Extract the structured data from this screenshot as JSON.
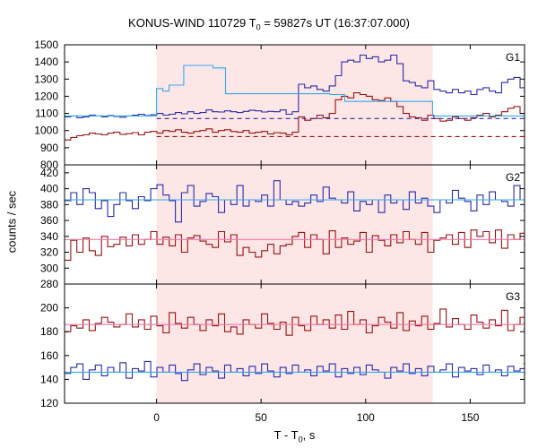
{
  "chart_data": {
    "type": "line",
    "title_main": "KONUS-WIND 110729 T",
    "title_sub": "0",
    "title_rest": " = 59827s UT (16:37:07.000)",
    "xlabel_main": "T - T",
    "xlabel_sub": "0",
    "xlabel_rest": ", s",
    "ylabel": "counts / sec",
    "xlim": [
      -44,
      176
    ],
    "xticks": [
      0,
      50,
      100,
      150
    ],
    "highlight_interval": [
      0,
      132
    ],
    "colors": {
      "blue": "#2b2bab",
      "red": "#9b1111",
      "cyan": "#33aaee",
      "pink": "#ee77aa",
      "highlight": "#fde6e6"
    },
    "panels": [
      {
        "label": "G1",
        "ylim": [
          800,
          1500
        ],
        "yticks": [
          800,
          900,
          1000,
          1100,
          1200,
          1300,
          1400,
          1500
        ],
        "series": [
          {
            "color": "blue",
            "style": "steps",
            "x0": -44,
            "step": 2.944,
            "values": [
              1080,
              1085,
              1075,
              1080,
              1090,
              1085,
              1080,
              1088,
              1082,
              1078,
              1085,
              1090,
              1095,
              1088,
              1092,
              1100,
              1090,
              1095,
              1105,
              1098,
              1110,
              1100,
              1105,
              1120,
              1110,
              1108,
              1115,
              1110,
              1105,
              1112,
              1118,
              1115,
              1108,
              1112,
              1110,
              1120,
              1095,
              1110,
              1270,
              1250,
              1260,
              1240,
              1230,
              1260,
              1320,
              1400,
              1410,
              1400,
              1440,
              1420,
              1430,
              1400,
              1410,
              1440,
              1390,
              1290,
              1280,
              1260,
              1250,
              1290,
              1240,
              1230,
              1220,
              1240,
              1220,
              1230,
              1210,
              1240,
              1250,
              1230,
              1220,
              1280,
              1300,
              1310,
              1250,
              1230,
              1200,
              1210,
              1240,
              1215,
              1260,
              1220,
              1210,
              1190,
              1215,
              1230,
              1180,
              1230,
              1200,
              1175,
              1190,
              1170,
              1160,
              1180,
              1150,
              1160,
              1140,
              1130,
              1120,
              1110,
              1110,
              1100,
              1100,
              1090,
              1090,
              1100,
              1080,
              1070,
              1085,
              1095,
              1100,
              1090,
              1080,
              1100,
              1110,
              1090,
              1095,
              1100,
              1085,
              1100,
              1110,
              1105,
              1105,
              1100,
              1090,
              1120,
              1095,
              1090,
              1100,
              1110
            ]
          },
          {
            "color": "red",
            "style": "steps",
            "x0": -44,
            "step": 2.944,
            "values": [
              945,
              960,
              970,
              975,
              985,
              980,
              975,
              985,
              990,
              978,
              982,
              988,
              975,
              990,
              995,
              985,
              1000,
              995,
              1005,
              990,
              985,
              995,
              1000,
              1010,
              990,
              1000,
              1005,
              995,
              990,
              1000,
              985,
              990,
              995,
              980,
              988,
              985,
              975,
              990,
              1080,
              1060,
              1070,
              1090,
              1075,
              1100,
              1180,
              1200,
              1190,
              1220,
              1210,
              1200,
              1180,
              1175,
              1190,
              1170,
              1140,
              1100,
              1080,
              1075,
              1060,
              1090,
              1070,
              1055,
              1060,
              1080,
              1070,
              1060,
              1075,
              1090,
              1100,
              1080,
              1090,
              1110,
              1130,
              1140,
              1100,
              1090,
              1080,
              1080,
              1070,
              1060,
              1065,
              1070,
              1060,
              1050,
              1045,
              1040,
              1050,
              1030,
              1020,
              1015,
              1010,
              1000,
              1000,
              990,
              985,
              980,
              990,
              975,
              960,
              965,
              970,
              980,
              975,
              970,
              990,
              985,
              980,
              960,
              985,
              995,
              990,
              975,
              985,
              970,
              980,
              990,
              985,
              975,
              980,
              975,
              970,
              990,
              975,
              985,
              970,
              985,
              980,
              975,
              985,
              970,
              975,
              960
            ]
          },
          {
            "color": "cyan",
            "style": "steps",
            "x": [
              -44,
              0,
              3,
              6,
              13,
              27,
              33,
              83,
              90,
              132,
              176
            ],
            "values": [
              1085,
              1245,
              1230,
              1265,
              1380,
              1365,
              1215,
              1210,
              1170,
              1085,
              1085
            ]
          },
          {
            "color": "blue",
            "style": "dashed",
            "x": [
              0,
              176
            ],
            "values": [
              1070,
              1070
            ]
          },
          {
            "color": "red",
            "style": "dashed",
            "x": [
              0,
              176
            ],
            "values": [
              965,
              965
            ]
          }
        ]
      },
      {
        "label": "G2",
        "ylim": [
          280,
          430
        ],
        "yticks": [
          280,
          300,
          320,
          340,
          360,
          380,
          400,
          420
        ],
        "series": [
          {
            "color": "blue",
            "style": "steps",
            "x0": -44,
            "step": 2.944,
            "values": [
              385,
              395,
              380,
              400,
              395,
              375,
              385,
              365,
              380,
              395,
              385,
              375,
              390,
              385,
              400,
              405,
              392,
              385,
              358,
              395,
              404,
              378,
              384,
              394,
              390,
              370,
              386,
              380,
              404,
              378,
              386,
              384,
              392,
              378,
              410,
              386,
              380,
              384,
              378,
              382,
              392,
              384,
              402,
              388,
              386,
              382,
              396,
              372,
              384,
              380,
              386,
              370,
              392,
              382,
              386,
              374,
              396,
              382,
              388,
              378,
              370,
              386,
              382,
              398,
              388,
              384,
              372,
              392,
              380,
              396,
              386,
              384,
              378,
              404,
              386,
              386,
              372,
              390,
              380,
              398,
              378,
              384,
              380,
              368,
              390,
              382,
              398,
              388,
              392,
              372,
              380,
              384,
              402,
              378,
              372,
              384,
              366,
              394,
              382,
              396,
              378,
              380,
              370,
              392,
              386,
              390,
              384,
              380,
              386,
              410,
              390,
              384,
              398,
              382,
              400,
              382,
              394,
              376,
              402,
              386,
              392,
              388,
              412,
              398,
              384,
              416,
              390,
              376,
              392,
              384
            ]
          },
          {
            "color": "red",
            "style": "steps",
            "x0": -44,
            "step": 2.944,
            "values": [
              310,
              335,
              320,
              338,
              322,
              316,
              340,
              327,
              330,
              339,
              328,
              342,
              330,
              336,
              346,
              330,
              339,
              328,
              342,
              320,
              338,
              341,
              334,
              330,
              326,
              346,
              333,
              342,
              316,
              326,
              320,
              314,
              322,
              330,
              318,
              328,
              330,
              340,
              345,
              326,
              342,
              336,
              318,
              347,
              326,
              338,
              330,
              334,
              345,
              320,
              341,
              335,
              328,
              342,
              332,
              346,
              336,
              330,
              345,
              320,
              335,
              338,
              342,
              330,
              345,
              326,
              348,
              340,
              346,
              332,
              348,
              325,
              342,
              336,
              344,
              330,
              346,
              338,
              334,
              342,
              331,
              334,
              339,
              330,
              342,
              336,
              332,
              346,
              330,
              344,
              338,
              326,
              335,
              352,
              334,
              350,
              330,
              342,
              336,
              340,
              322,
              334,
              326,
              338,
              328,
              340,
              334,
              342,
              332,
              344,
              334,
              346,
              336,
              326,
              344,
              336,
              325,
              348,
              342,
              330,
              336,
              342,
              338,
              344,
              332,
              334,
              340,
              338,
              330,
              326
            ]
          },
          {
            "color": "cyan",
            "style": "steps",
            "x": [
              -44,
              176
            ],
            "values": [
              386,
              386
            ]
          },
          {
            "color": "pink",
            "style": "steps",
            "x": [
              -44,
              176
            ],
            "values": [
              336,
              336
            ]
          }
        ]
      },
      {
        "label": "G3",
        "ylim": [
          120,
          220
        ],
        "yticks": [
          120,
          140,
          160,
          180,
          200
        ],
        "series": [
          {
            "color": "red",
            "style": "steps",
            "x0": -44,
            "step": 2.944,
            "values": [
              180,
              185,
              183,
              190,
              181,
              187,
              192,
              188,
              184,
              186,
              195,
              184,
              190,
              182,
              193,
              185,
              179,
              196,
              187,
              183,
              192,
              186,
              181,
              190,
              185,
              195,
              180,
              184,
              178,
              190,
              186,
              183,
              195,
              187,
              182,
              188,
              177,
              192,
              185,
              181,
              193,
              186,
              190,
              183,
              194,
              182,
              197,
              186,
              190,
              179,
              185,
              192,
              188,
              183,
              196,
              181,
              189,
              185,
              193,
              182,
              187,
              199,
              184,
              191,
              186,
              182,
              194,
              188,
              183,
              190,
              185,
              198,
              181,
              186,
              192,
              187,
              183,
              204,
              188,
              182,
              199,
              186,
              190,
              183,
              194,
              187,
              205,
              185,
              189,
              196,
              183,
              190,
              184,
              193,
              188,
              181,
              195,
              186,
              191,
              184,
              188,
              197,
              183,
              190,
              186,
              192,
              184,
              189,
              196,
              185,
              191,
              183,
              193,
              187,
              182,
              195,
              184,
              190,
              186,
              199,
              188,
              183,
              191,
              186,
              207,
              183,
              194,
              186,
              189,
              172
            ]
          },
          {
            "color": "blue",
            "style": "steps",
            "x0": -44,
            "step": 2.944,
            "values": [
              145,
              150,
              153,
              140,
              148,
              152,
              143,
              150,
              146,
              154,
              141,
              149,
              147,
              155,
              142,
              150,
              146,
              152,
              145,
              139,
              148,
              153,
              144,
              150,
              147,
              141,
              152,
              146,
              149,
              143,
              151,
              145,
              153,
              147,
              142,
              150,
              145,
              152,
              146,
              148,
              143,
              151,
              147,
              153,
              142,
              149,
              145,
              150,
              144,
              152,
              148,
              146,
              141,
              150,
              147,
              153,
              145,
              149,
              143,
              151,
              146,
              148,
              153,
              142,
              150,
              147,
              149,
              144,
              152,
              146,
              148,
              143,
              151,
              147,
              149,
              145,
              153,
              146,
              150,
              143,
              148,
              152,
              145,
              149,
              147,
              153,
              144,
              150,
              146,
              148,
              142,
              151,
              147,
              149,
              145,
              152,
              146,
              150,
              143,
              148,
              151,
              146,
              140,
              150,
              147,
              152,
              145,
              149,
              143,
              151,
              146,
              148,
              153,
              144,
              150,
              147,
              149,
              145,
              152,
              146,
              141,
              150,
              147,
              149,
              144,
              152,
              146,
              150,
              143,
              148
            ]
          },
          {
            "color": "pink",
            "style": "steps",
            "x": [
              -44,
              176
            ],
            "values": [
              186,
              186
            ]
          },
          {
            "color": "cyan",
            "style": "steps",
            "x": [
              -44,
              176
            ],
            "values": [
              146,
              146
            ]
          }
        ]
      }
    ]
  }
}
